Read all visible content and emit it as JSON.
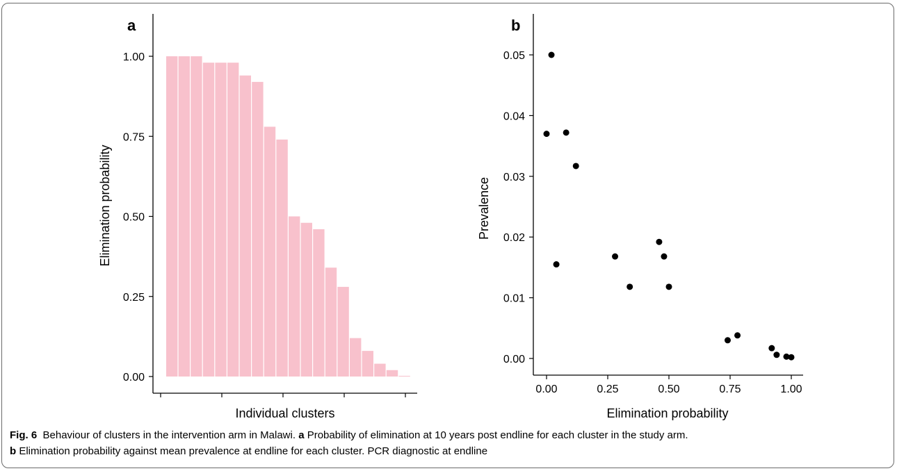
{
  "chart_data": [
    {
      "type": "bar",
      "panel_label": "a",
      "xlabel": "Individual clusters",
      "ylabel": "Elimination probability",
      "ylim": [
        0,
        1.05
      ],
      "yticks": [
        "0.00",
        "0.25",
        "0.50",
        "0.75",
        "1.00"
      ],
      "values": [
        1.0,
        1.0,
        1.0,
        0.98,
        0.98,
        0.98,
        0.94,
        0.92,
        0.78,
        0.74,
        0.5,
        0.48,
        0.46,
        0.34,
        0.28,
        0.12,
        0.08,
        0.04,
        0.02,
        0.0
      ],
      "bar_color": "#f8c1cc"
    },
    {
      "type": "scatter",
      "panel_label": "b",
      "xlabel": "Elimination probability",
      "ylabel": "Prevalence",
      "xlim": [
        -0.03,
        1.03
      ],
      "ylim": [
        -0.0025,
        0.052
      ],
      "xticks": [
        "0.00",
        "0.25",
        "0.50",
        "0.75",
        "1.00"
      ],
      "yticks": [
        "0.00",
        "0.01",
        "0.02",
        "0.03",
        "0.04",
        "0.05"
      ],
      "points": [
        {
          "x": 0.02,
          "y": 0.05
        },
        {
          "x": 0.0,
          "y": 0.037
        },
        {
          "x": 0.08,
          "y": 0.0372
        },
        {
          "x": 0.12,
          "y": 0.0317
        },
        {
          "x": 0.04,
          "y": 0.0155
        },
        {
          "x": 0.28,
          "y": 0.0168
        },
        {
          "x": 0.34,
          "y": 0.0118
        },
        {
          "x": 0.46,
          "y": 0.0192
        },
        {
          "x": 0.48,
          "y": 0.0168
        },
        {
          "x": 0.5,
          "y": 0.0118
        },
        {
          "x": 0.74,
          "y": 0.003
        },
        {
          "x": 0.78,
          "y": 0.0038
        },
        {
          "x": 0.92,
          "y": 0.0017
        },
        {
          "x": 0.94,
          "y": 0.0006
        },
        {
          "x": 0.98,
          "y": 0.0003
        },
        {
          "x": 1.0,
          "y": 0.0002
        }
      ],
      "point_color": "#000000"
    }
  ],
  "caption": {
    "fig_label": "Fig. 6",
    "title": "Behaviour of clusters in the intervention arm in Malawi.",
    "part_a_label": "a",
    "part_a_text": "Probability of elimination at 10 years post endline for each cluster in the study arm.",
    "part_b_label": "b",
    "part_b_text": "Elimination probability against mean prevalence at endline for each cluster. PCR diagnostic at endline"
  }
}
